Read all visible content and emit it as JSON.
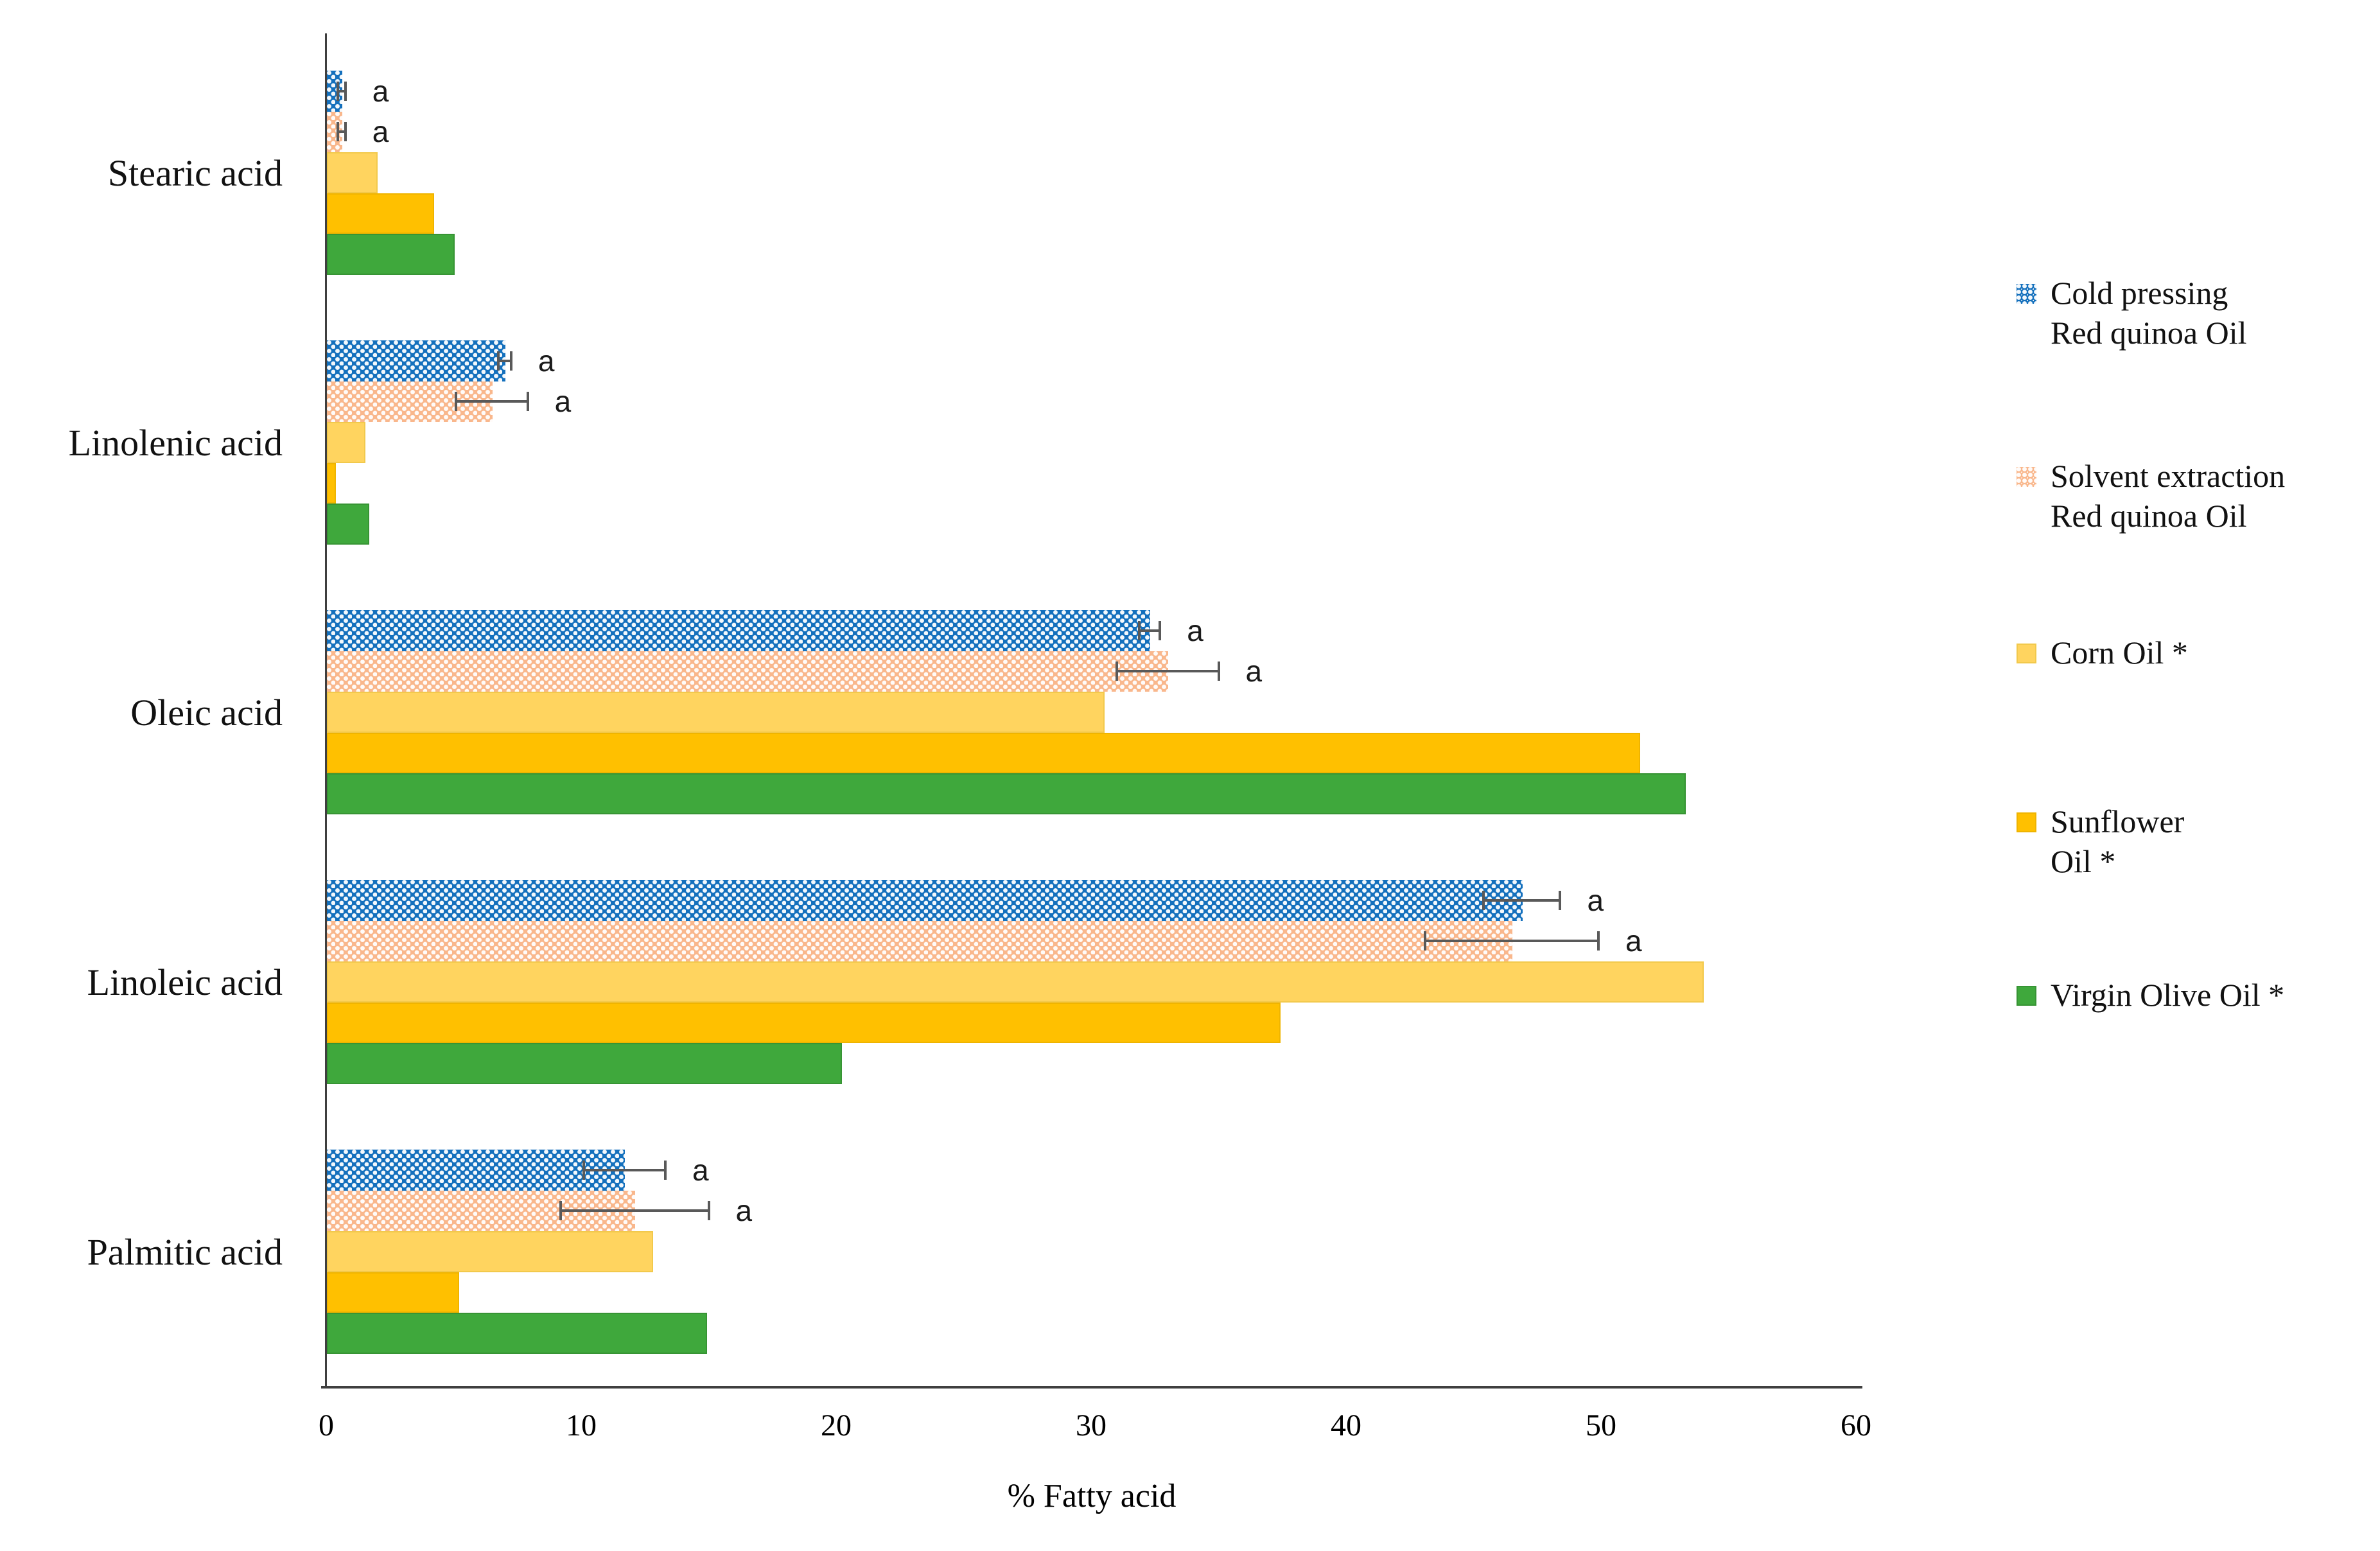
{
  "chart_data": {
    "type": "bar",
    "orientation": "horizontal",
    "title": "",
    "xlabel": "% Fatty acid",
    "xlim": [
      0,
      60
    ],
    "xticks": [
      0,
      10,
      20,
      30,
      40,
      50,
      60
    ],
    "grid": false,
    "legend_position": "right",
    "axis_color": "#3F3F3F",
    "error_bar_color": "#595959",
    "categories": [
      "Stearic acid",
      "Linolenic acid",
      "Oleic acid",
      "Linoleic acid",
      "Palmitic acid"
    ],
    "series": [
      {
        "name": "Cold pressing Red quinoa Oil",
        "legend_lines": [
          "Cold pressing",
          "Red quinoa Oil"
        ],
        "color": "#1470BD",
        "fill_pattern": "white-dots",
        "values": [
          0.6,
          7.0,
          32.3,
          46.9,
          11.7
        ],
        "errors": [
          0.15,
          0.25,
          0.4,
          1.5,
          1.6
        ],
        "sig_letters": [
          "a",
          "a",
          "a",
          "a",
          "a"
        ]
      },
      {
        "name": "Solvent extraction Red quinoa Oil",
        "legend_lines": [
          "Solvent extraction",
          "Red quinoa Oil"
        ],
        "color": "#F9B78C",
        "fill_pattern": "white-dots",
        "values": [
          0.6,
          6.5,
          33.0,
          46.5,
          12.1
        ],
        "errors": [
          0.15,
          1.4,
          2.0,
          3.4,
          2.9
        ],
        "sig_letters": [
          "a",
          "a",
          "a",
          "a",
          "a"
        ]
      },
      {
        "name": "Corn Oil *",
        "legend_lines": [
          "Corn Oil *"
        ],
        "color": "#FFD45F",
        "fill_pattern": "solid",
        "border_color": "#F2C94C",
        "values": [
          2.0,
          1.5,
          30.5,
          54.0,
          12.8
        ]
      },
      {
        "name": "Sunflower Oil *",
        "legend_lines": [
          "Sunflower",
          "Oil *"
        ],
        "color": "#FFC000",
        "fill_pattern": "solid",
        "border_color": "#EFB400",
        "values": [
          4.2,
          0.35,
          51.5,
          37.4,
          5.2
        ]
      },
      {
        "name": "Virgin Olive Oil *",
        "legend_lines": [
          "Virgin Olive Oil *"
        ],
        "color": "#3FA83C",
        "fill_pattern": "solid",
        "border_color": "#379434",
        "values": [
          5.0,
          1.65,
          53.3,
          20.2,
          14.9
        ]
      }
    ]
  }
}
